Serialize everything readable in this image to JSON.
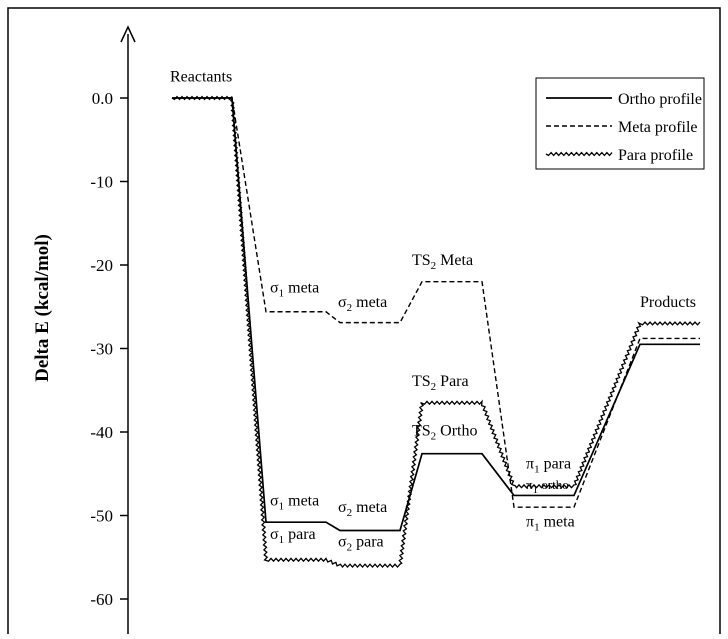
{
  "chart_data": {
    "type": "line",
    "title": "",
    "xlabel": "",
    "ylabel": "Delta E (kcal/mol)",
    "ylim": [
      -65,
      5
    ],
    "yticks": [
      0,
      -10,
      -20,
      -30,
      -40,
      -50,
      -60
    ],
    "ytick_labels": [
      "0.0",
      "-10",
      "-20",
      "-30",
      "-40",
      "-50",
      "-60"
    ],
    "grid": false,
    "legend_position": "top-right",
    "stages": [
      "Reactants",
      "σ1",
      "σ2",
      "TS2",
      "π1",
      "Products"
    ],
    "series": [
      {
        "name": "Ortho profile",
        "style": "solid",
        "values": [
          0,
          -50.8,
          -51.8,
          -42.6,
          -47.6,
          -29.5
        ]
      },
      {
        "name": "Meta profile",
        "style": "dashed",
        "values": [
          0,
          -25.6,
          -26.9,
          -22.0,
          -49.0,
          -28.8
        ]
      },
      {
        "name": "Para profile",
        "style": "wavy",
        "values": [
          0,
          -55.3,
          -56.0,
          -36.5,
          -46.5,
          -27.0
        ]
      }
    ],
    "annotations": [
      {
        "id": "reactants",
        "base": "Reactants",
        "sub": "",
        "suffix": "",
        "stage": 0,
        "anchor_y": 2.0
      },
      {
        "id": "s1-meta-upper",
        "base": "σ",
        "sub": "1",
        "suffix": " meta",
        "stage": 1,
        "anchor_y": -23.3
      },
      {
        "id": "s2-meta-upper",
        "base": "σ",
        "sub": "2",
        "suffix": " meta",
        "stage": 2,
        "anchor_y": -25.0
      },
      {
        "id": "ts2-meta",
        "base": "TS",
        "sub": "2",
        "suffix": " Meta",
        "stage": 3,
        "anchor_y": -20.0
      },
      {
        "id": "products",
        "base": "Products",
        "sub": "",
        "suffix": "",
        "stage": 5,
        "anchor_y": -25.0
      },
      {
        "id": "ts2-para",
        "base": "TS",
        "sub": "2",
        "suffix": " Para",
        "stage": 3,
        "anchor_y": -34.5
      },
      {
        "id": "ts2-ortho",
        "base": "TS",
        "sub": "2",
        "suffix": " Ortho",
        "stage": 3,
        "anchor_y": -40.4
      },
      {
        "id": "pi1-para",
        "base": "π",
        "sub": "1",
        "suffix": " para",
        "stage": 4,
        "anchor_y": -44.4
      },
      {
        "id": "pi1-ortho",
        "base": "π",
        "sub": "1",
        "suffix": " ortho",
        "stage": 4,
        "anchor_y": -46.8,
        "small": true
      },
      {
        "id": "pi1-meta",
        "base": "π",
        "sub": "1",
        "suffix": " meta",
        "stage": 4,
        "anchor_y": -51.3
      },
      {
        "id": "s1-meta-lower",
        "base": "σ",
        "sub": "1",
        "suffix": " meta",
        "stage": 1,
        "anchor_y": -48.8
      },
      {
        "id": "s2-meta-lower",
        "base": "σ",
        "sub": "2",
        "suffix": " meta",
        "stage": 2,
        "anchor_y": -49.6
      },
      {
        "id": "s1-para",
        "base": "σ",
        "sub": "1",
        "suffix": " para",
        "stage": 1,
        "anchor_y": -52.8
      },
      {
        "id": "s2-para",
        "base": "σ",
        "sub": "2",
        "suffix": " para",
        "stage": 2,
        "anchor_y": -53.7
      }
    ]
  }
}
